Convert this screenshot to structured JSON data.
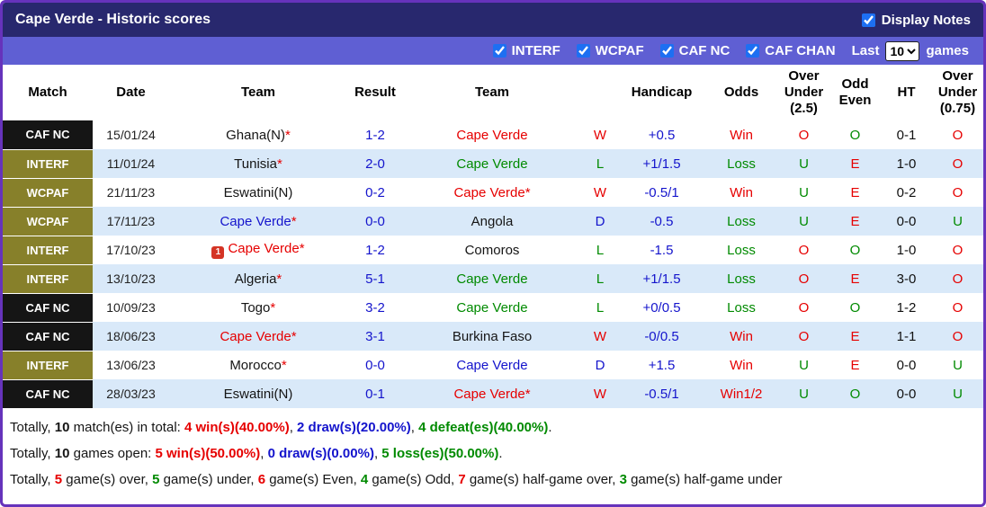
{
  "colors": {
    "outer_border": "#6633bb",
    "title_bar_bg": "#28286e",
    "filter_bar_bg": "#5f5fd3",
    "alt_row_bg": "#d9e9f9",
    "comp_black": "#151515",
    "comp_olive": "#87802a",
    "red": "#e60000",
    "green": "#008a00",
    "blue": "#1414cc",
    "checkbox_accent": "#1d6ff2"
  },
  "title_bar": {
    "title": "Cape Verde - Historic scores",
    "display_notes": "Display Notes"
  },
  "filter_bar": {
    "competitions": [
      "INTERF",
      "WCPAF",
      "CAF NC",
      "CAF CHAN"
    ],
    "last_label": "Last",
    "games_count": "10",
    "games_label": "games"
  },
  "table": {
    "asterisk": "*",
    "headers": [
      "Match",
      "Date",
      "Team",
      "Result",
      "Team",
      "",
      "Handicap",
      "Odds",
      "Over Under (2.5)",
      "Odd Even",
      "HT",
      "Over Under (0.75)"
    ],
    "rows": [
      {
        "comp": "CAF NC",
        "comp_style": "black",
        "date": "15/01/24",
        "home": "Ghana(N)",
        "home_ast": true,
        "home_color": "black",
        "icon": false,
        "result": "1-2",
        "away": "Cape Verde",
        "away_ast": false,
        "away_color": "red",
        "wdl": "W",
        "wdl_color": "red",
        "handicap": "+0.5",
        "odds": "Win",
        "odds_color": "red",
        "ou25": "O",
        "ou25_color": "red",
        "oe": "O",
        "oe_color": "green",
        "ht": "0-1",
        "ou075": "O",
        "ou075_color": "red"
      },
      {
        "comp": "INTERF",
        "comp_style": "olive",
        "date": "11/01/24",
        "home": "Tunisia",
        "home_ast": true,
        "home_color": "black",
        "icon": false,
        "result": "2-0",
        "away": "Cape Verde",
        "away_ast": false,
        "away_color": "green",
        "wdl": "L",
        "wdl_color": "green",
        "handicap": "+1/1.5",
        "odds": "Loss",
        "odds_color": "green",
        "ou25": "U",
        "ou25_color": "green",
        "oe": "E",
        "oe_color": "red",
        "ht": "1-0",
        "ou075": "O",
        "ou075_color": "red"
      },
      {
        "comp": "WCPAF",
        "comp_style": "olive",
        "date": "21/11/23",
        "home": "Eswatini(N)",
        "home_ast": false,
        "home_color": "black",
        "icon": false,
        "result": "0-2",
        "away": "Cape Verde",
        "away_ast": true,
        "away_color": "red",
        "wdl": "W",
        "wdl_color": "red",
        "handicap": "-0.5/1",
        "odds": "Win",
        "odds_color": "red",
        "ou25": "U",
        "ou25_color": "green",
        "oe": "E",
        "oe_color": "red",
        "ht": "0-2",
        "ou075": "O",
        "ou075_color": "red"
      },
      {
        "comp": "WCPAF",
        "comp_style": "olive",
        "date": "17/11/23",
        "home": "Cape Verde",
        "home_ast": true,
        "home_color": "blue",
        "icon": false,
        "result": "0-0",
        "away": "Angola",
        "away_ast": false,
        "away_color": "black",
        "wdl": "D",
        "wdl_color": "blue",
        "handicap": "-0.5",
        "odds": "Loss",
        "odds_color": "green",
        "ou25": "U",
        "ou25_color": "green",
        "oe": "E",
        "oe_color": "red",
        "ht": "0-0",
        "ou075": "U",
        "ou075_color": "green"
      },
      {
        "comp": "INTERF",
        "comp_style": "olive",
        "date": "17/10/23",
        "home": "Cape Verde",
        "home_ast": true,
        "home_color": "red",
        "icon": "1",
        "result": "1-2",
        "away": "Comoros",
        "away_ast": false,
        "away_color": "black",
        "wdl": "L",
        "wdl_color": "green",
        "handicap": "-1.5",
        "odds": "Loss",
        "odds_color": "green",
        "ou25": "O",
        "ou25_color": "red",
        "oe": "O",
        "oe_color": "green",
        "ht": "1-0",
        "ou075": "O",
        "ou075_color": "red"
      },
      {
        "comp": "INTERF",
        "comp_style": "olive",
        "date": "13/10/23",
        "home": "Algeria",
        "home_ast": true,
        "home_color": "black",
        "icon": false,
        "result": "5-1",
        "away": "Cape Verde",
        "away_ast": false,
        "away_color": "green",
        "wdl": "L",
        "wdl_color": "green",
        "handicap": "+1/1.5",
        "odds": "Loss",
        "odds_color": "green",
        "ou25": "O",
        "ou25_color": "red",
        "oe": "E",
        "oe_color": "red",
        "ht": "3-0",
        "ou075": "O",
        "ou075_color": "red"
      },
      {
        "comp": "CAF NC",
        "comp_style": "black",
        "date": "10/09/23",
        "home": "Togo",
        "home_ast": true,
        "home_color": "black",
        "icon": false,
        "result": "3-2",
        "away": "Cape Verde",
        "away_ast": false,
        "away_color": "green",
        "wdl": "L",
        "wdl_color": "green",
        "handicap": "+0/0.5",
        "odds": "Loss",
        "odds_color": "green",
        "ou25": "O",
        "ou25_color": "red",
        "oe": "O",
        "oe_color": "green",
        "ht": "1-2",
        "ou075": "O",
        "ou075_color": "red"
      },
      {
        "comp": "CAF NC",
        "comp_style": "black",
        "date": "18/06/23",
        "home": "Cape Verde",
        "home_ast": true,
        "home_color": "red",
        "icon": false,
        "result": "3-1",
        "away": "Burkina Faso",
        "away_ast": false,
        "away_color": "black",
        "wdl": "W",
        "wdl_color": "red",
        "handicap": "-0/0.5",
        "odds": "Win",
        "odds_color": "red",
        "ou25": "O",
        "ou25_color": "red",
        "oe": "E",
        "oe_color": "red",
        "ht": "1-1",
        "ou075": "O",
        "ou075_color": "red"
      },
      {
        "comp": "INTERF",
        "comp_style": "olive",
        "date": "13/06/23",
        "home": "Morocco",
        "home_ast": true,
        "home_color": "black",
        "icon": false,
        "result": "0-0",
        "away": "Cape Verde",
        "away_ast": false,
        "away_color": "blue",
        "wdl": "D",
        "wdl_color": "blue",
        "handicap": "+1.5",
        "odds": "Win",
        "odds_color": "red",
        "ou25": "U",
        "ou25_color": "green",
        "oe": "E",
        "oe_color": "red",
        "ht": "0-0",
        "ou075": "U",
        "ou075_color": "green"
      },
      {
        "comp": "CAF NC",
        "comp_style": "black",
        "date": "28/03/23",
        "home": "Eswatini(N)",
        "home_ast": false,
        "home_color": "black",
        "icon": false,
        "result": "0-1",
        "away": "Cape Verde",
        "away_ast": true,
        "away_color": "red",
        "wdl": "W",
        "wdl_color": "red",
        "handicap": "-0.5/1",
        "odds": "Win1/2",
        "odds_color": "red",
        "ou25": "U",
        "ou25_color": "green",
        "oe": "O",
        "oe_color": "green",
        "ht": "0-0",
        "ou075": "U",
        "ou075_color": "green"
      }
    ]
  },
  "summary": {
    "lines": [
      [
        {
          "t": "Totally, ",
          "c": "black",
          "b": false
        },
        {
          "t": "10",
          "c": "black",
          "b": true
        },
        {
          "t": " match(es) in total: ",
          "c": "black",
          "b": false
        },
        {
          "t": "4 win(s)(40.00%)",
          "c": "red",
          "b": true
        },
        {
          "t": ", ",
          "c": "black",
          "b": false
        },
        {
          "t": "2 draw(s)(20.00%)",
          "c": "blue",
          "b": true
        },
        {
          "t": ", ",
          "c": "black",
          "b": false
        },
        {
          "t": "4 defeat(es)(40.00%)",
          "c": "green",
          "b": true
        },
        {
          "t": ".",
          "c": "black",
          "b": false
        }
      ],
      [
        {
          "t": "Totally, ",
          "c": "black",
          "b": false
        },
        {
          "t": "10",
          "c": "black",
          "b": true
        },
        {
          "t": " games open: ",
          "c": "black",
          "b": false
        },
        {
          "t": "5 win(s)(50.00%)",
          "c": "red",
          "b": true
        },
        {
          "t": ", ",
          "c": "black",
          "b": false
        },
        {
          "t": "0 draw(s)(0.00%)",
          "c": "blue",
          "b": true
        },
        {
          "t": ", ",
          "c": "black",
          "b": false
        },
        {
          "t": "5 loss(es)(50.00%)",
          "c": "green",
          "b": true
        },
        {
          "t": ".",
          "c": "black",
          "b": false
        }
      ],
      [
        {
          "t": "Totally, ",
          "c": "black",
          "b": false
        },
        {
          "t": "5",
          "c": "red",
          "b": true
        },
        {
          "t": " game(s) over, ",
          "c": "black",
          "b": false
        },
        {
          "t": "5",
          "c": "green",
          "b": true
        },
        {
          "t": " game(s) under, ",
          "c": "black",
          "b": false
        },
        {
          "t": "6",
          "c": "red",
          "b": true
        },
        {
          "t": " game(s) Even, ",
          "c": "black",
          "b": false
        },
        {
          "t": "4",
          "c": "green",
          "b": true
        },
        {
          "t": " game(s) Odd, ",
          "c": "black",
          "b": false
        },
        {
          "t": "7",
          "c": "red",
          "b": true
        },
        {
          "t": " game(s) half-game over, ",
          "c": "black",
          "b": false
        },
        {
          "t": "3",
          "c": "green",
          "b": true
        },
        {
          "t": " game(s) half-game under",
          "c": "black",
          "b": false
        }
      ]
    ]
  }
}
